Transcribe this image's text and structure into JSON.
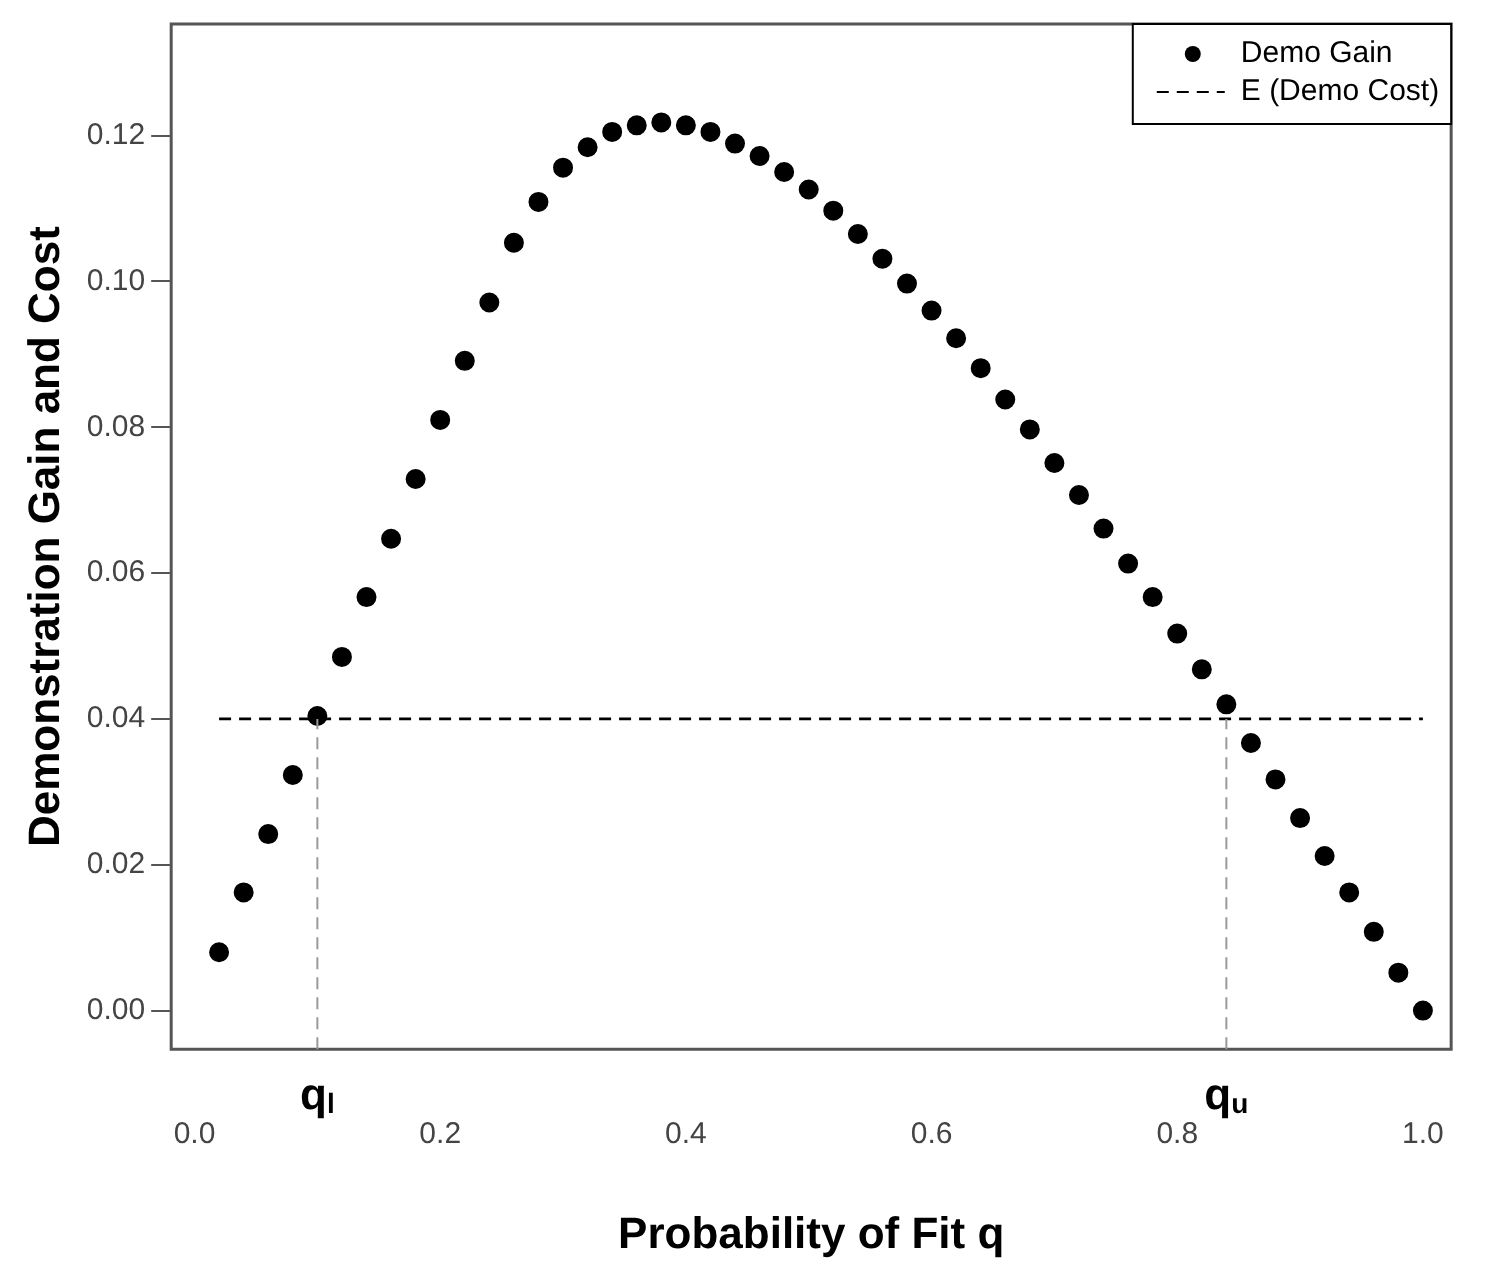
{
  "chart_data": {
    "type": "scatter",
    "xlabel": "Probability of Fit q",
    "ylabel": "Demonstration Gain and Cost",
    "xlim": [
      -0.019,
      1.023
    ],
    "ylim": [
      -0.0053,
      0.1353
    ],
    "xticks": [
      {
        "value": 0,
        "label": "0.0"
      },
      {
        "value": 0.2,
        "label": "0.2"
      },
      {
        "value": 0.4,
        "label": "0.4"
      },
      {
        "value": 0.6,
        "label": "0.6"
      },
      {
        "value": 0.8,
        "label": "0.8"
      },
      {
        "value": 1,
        "label": "1.0"
      }
    ],
    "yticks": [
      {
        "value": 0,
        "label": "0.00"
      },
      {
        "value": 0.02,
        "label": "0.02"
      },
      {
        "value": 0.04,
        "label": "0.04"
      },
      {
        "value": 0.06,
        "label": "0.06"
      },
      {
        "value": 0.08,
        "label": "0.08"
      },
      {
        "value": 0.1,
        "label": "0.10"
      },
      {
        "value": 0.12,
        "label": "0.12"
      }
    ],
    "grid": false,
    "legend": "top right",
    "series": [
      {
        "name": "Demo Gain",
        "marker": "circle",
        "color": "#000000",
        "x": [
          0.02,
          0.04,
          0.06,
          0.08,
          0.1,
          0.12,
          0.14,
          0.16,
          0.18,
          0.2,
          0.22,
          0.24,
          0.26,
          0.28,
          0.3,
          0.32,
          0.34,
          0.36,
          0.38,
          0.4,
          0.42,
          0.44,
          0.46,
          0.48,
          0.5,
          0.52,
          0.54,
          0.56,
          0.58,
          0.6,
          0.62,
          0.64,
          0.66,
          0.68,
          0.7,
          0.72,
          0.74,
          0.76,
          0.78,
          0.8,
          0.82,
          0.84,
          0.86,
          0.88,
          0.9,
          0.92,
          0.94,
          0.96,
          0.98,
          1.0
        ],
        "values": [
          0.008,
          0.0162,
          0.0242,
          0.0323,
          0.0404,
          0.0485,
          0.0567,
          0.0647,
          0.0729,
          0.081,
          0.0891,
          0.0971,
          0.1053,
          0.1109,
          0.1156,
          0.1184,
          0.1205,
          0.1214,
          0.1218,
          0.1214,
          0.1205,
          0.1189,
          0.1172,
          0.115,
          0.1126,
          0.1097,
          0.1065,
          0.1031,
          0.0997,
          0.096,
          0.0922,
          0.0881,
          0.0838,
          0.0797,
          0.0751,
          0.0707,
          0.0661,
          0.0613,
          0.0567,
          0.0517,
          0.0468,
          0.042,
          0.0367,
          0.0317,
          0.0264,
          0.0212,
          0.0162,
          0.0108,
          0.0052,
          0.0
        ]
      },
      {
        "name": "E (Demo Cost)",
        "type": "line",
        "marker": "none",
        "line_style": "dashed",
        "color": "#000000",
        "x": [
          0.02,
          1.0
        ],
        "values": [
          0.04,
          0.04
        ]
      }
    ],
    "ref_lines": [
      {
        "axis": "x",
        "value": 0.1,
        "label": "q$_{l}$",
        "color": "#999999",
        "line_style": "dashed"
      },
      {
        "axis": "x",
        "value": 0.84,
        "label": "q$_{u}$",
        "color": "#999999",
        "line_style": "dashed"
      }
    ]
  }
}
